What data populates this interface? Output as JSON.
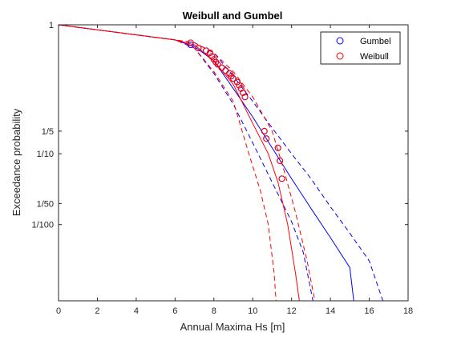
{
  "chart_data": {
    "type": "line",
    "title": "Weibull and Gumbel",
    "xlabel": "Annual Maxima Hs [m]",
    "ylabel": "Exceedance probability",
    "xlim": [
      0,
      18
    ],
    "xticks": [
      "0",
      "2",
      "4",
      "6",
      "8",
      "10",
      "12",
      "14",
      "16",
      "18"
    ],
    "ytick_labels": [
      {
        "label": "1",
        "p": 1.0
      },
      {
        "label": "1/5",
        "p": 0.2
      },
      {
        "label": "1/10",
        "p": 0.1
      },
      {
        "label": "1/50",
        "p": 0.02
      },
      {
        "label": "1/100",
        "p": 0.01
      }
    ],
    "y_scale": "log(-log(1-p)) probability paper",
    "y_range_p": [
      0.9995,
      0.0008
    ],
    "legend_position": "top-right",
    "legend": [
      {
        "name": "Gumbel",
        "color": "#0000ff"
      },
      {
        "name": "Weibull",
        "color": "#ff0000"
      }
    ],
    "series": [
      {
        "name": "Gumbel fit",
        "color": "#0000ff",
        "style": "solid",
        "points": [
          [
            0,
            0.9995
          ],
          [
            6,
            0.99
          ],
          [
            7,
            0.975
          ],
          [
            8,
            0.9
          ],
          [
            9,
            0.6
          ],
          [
            10,
            0.3
          ],
          [
            11,
            0.12
          ],
          [
            12,
            0.045
          ],
          [
            13,
            0.017
          ],
          [
            14,
            0.0065
          ],
          [
            15,
            0.0024
          ],
          [
            15.2,
            0.0008
          ]
        ]
      },
      {
        "name": "Gumbel lower bound",
        "color": "#0000ff",
        "style": "dashed",
        "points": [
          [
            0,
            0.9995
          ],
          [
            6,
            0.99
          ],
          [
            7,
            0.97
          ],
          [
            8,
            0.78
          ],
          [
            9,
            0.42
          ],
          [
            10,
            0.14
          ],
          [
            11,
            0.04
          ],
          [
            12,
            0.011
          ],
          [
            12.6,
            0.004
          ],
          [
            13.1,
            0.0008
          ]
        ]
      },
      {
        "name": "Gumbel upper bound",
        "color": "#0000ff",
        "style": "dashed",
        "points": [
          [
            0,
            0.9995
          ],
          [
            6,
            0.99
          ],
          [
            7,
            0.985
          ],
          [
            8,
            0.95
          ],
          [
            9,
            0.75
          ],
          [
            10,
            0.45
          ],
          [
            11,
            0.22
          ],
          [
            12,
            0.1
          ],
          [
            13,
            0.045
          ],
          [
            14,
            0.018
          ],
          [
            15,
            0.0075
          ],
          [
            16,
            0.003
          ],
          [
            16.7,
            0.0008
          ]
        ]
      },
      {
        "name": "Weibull fit",
        "color": "#ff0000",
        "style": "solid",
        "points": [
          [
            0,
            0.9995
          ],
          [
            6,
            0.99
          ],
          [
            7,
            0.98
          ],
          [
            8,
            0.9
          ],
          [
            9,
            0.65
          ],
          [
            10,
            0.25
          ],
          [
            10.8,
            0.1
          ],
          [
            11.3,
            0.04
          ],
          [
            11.8,
            0.01
          ],
          [
            12.2,
            0.002
          ],
          [
            12.4,
            0.0008
          ]
        ]
      },
      {
        "name": "Weibull lower bound",
        "color": "#ff0000",
        "style": "dashed",
        "points": [
          [
            0,
            0.9995
          ],
          [
            6,
            0.99
          ],
          [
            7,
            0.97
          ],
          [
            8,
            0.8
          ],
          [
            9,
            0.45
          ],
          [
            9.8,
            0.1
          ],
          [
            10.4,
            0.03
          ],
          [
            10.8,
            0.01
          ],
          [
            11.1,
            0.002
          ],
          [
            11.2,
            0.0008
          ]
        ]
      },
      {
        "name": "Weibull upper bound",
        "color": "#ff0000",
        "style": "dashed",
        "points": [
          [
            0,
            0.9995
          ],
          [
            6,
            0.99
          ],
          [
            7,
            0.985
          ],
          [
            8,
            0.95
          ],
          [
            9,
            0.8
          ],
          [
            10,
            0.5
          ],
          [
            11,
            0.2
          ],
          [
            11.6,
            0.06
          ],
          [
            12.2,
            0.015
          ],
          [
            12.8,
            0.003
          ],
          [
            13.2,
            0.0008
          ]
        ]
      },
      {
        "name": "Gumbel",
        "color": "#0000ff",
        "style": "markers",
        "points": [
          [
            6.8,
            0.98
          ],
          [
            7.2,
            0.97
          ],
          [
            7.6,
            0.96
          ],
          [
            7.8,
            0.95
          ],
          [
            7.9,
            0.93
          ],
          [
            8.0,
            0.91
          ],
          [
            8.1,
            0.89
          ],
          [
            8.2,
            0.87
          ],
          [
            8.4,
            0.84
          ],
          [
            8.6,
            0.81
          ],
          [
            8.8,
            0.78
          ],
          [
            8.9,
            0.75
          ],
          [
            9.0,
            0.72
          ],
          [
            9.2,
            0.68
          ],
          [
            9.3,
            0.64
          ],
          [
            9.4,
            0.6
          ],
          [
            9.5,
            0.55
          ],
          [
            9.6,
            0.5
          ],
          [
            10.6,
            0.2
          ],
          [
            10.7,
            0.16
          ],
          [
            11.3,
            0.12
          ],
          [
            11.4,
            0.08
          ],
          [
            11.5,
            0.045
          ]
        ]
      },
      {
        "name": "Weibull",
        "color": "#ff0000",
        "style": "markers",
        "points": [
          [
            6.8,
            0.985
          ],
          [
            7.2,
            0.97
          ],
          [
            7.6,
            0.96
          ],
          [
            7.8,
            0.95
          ],
          [
            7.9,
            0.93
          ],
          [
            8.0,
            0.91
          ],
          [
            8.1,
            0.89
          ],
          [
            8.2,
            0.87
          ],
          [
            8.4,
            0.84
          ],
          [
            8.6,
            0.81
          ],
          [
            8.8,
            0.78
          ],
          [
            8.9,
            0.75
          ],
          [
            9.0,
            0.72
          ],
          [
            9.2,
            0.68
          ],
          [
            9.3,
            0.64
          ],
          [
            9.4,
            0.6
          ],
          [
            9.5,
            0.55
          ],
          [
            9.6,
            0.5
          ],
          [
            10.6,
            0.2
          ],
          [
            10.7,
            0.16
          ],
          [
            11.3,
            0.12
          ],
          [
            11.4,
            0.08
          ],
          [
            11.5,
            0.045
          ]
        ]
      }
    ]
  }
}
